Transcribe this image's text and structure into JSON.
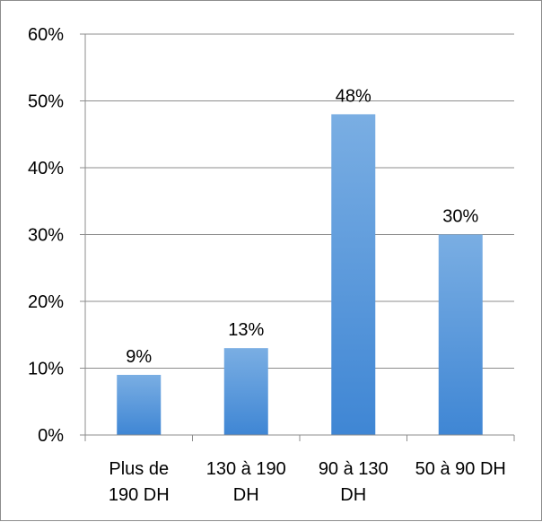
{
  "chart_data": {
    "type": "bar",
    "title": "",
    "xlabel": "",
    "ylabel": "",
    "categories": [
      [
        "Plus de",
        "190 DH"
      ],
      [
        "130 à 190",
        "DH"
      ],
      [
        "90 à 130",
        "DH"
      ],
      [
        "50 à 90 DH"
      ]
    ],
    "values": [
      9,
      13,
      48,
      30
    ],
    "data_labels": [
      "9%",
      "13%",
      "48%",
      "30%"
    ],
    "ylim": [
      0,
      60
    ],
    "yticks": [
      0,
      10,
      20,
      30,
      40,
      50,
      60
    ],
    "ytick_labels": [
      "0%",
      "10%",
      "20%",
      "30%",
      "40%",
      "50%",
      "60%"
    ],
    "grid": true,
    "legend": "none",
    "colors": {
      "bar_top": "#7aaee3",
      "bar_bottom": "#3f86d4",
      "grid": "#8c8c8c",
      "axis": "#8c8c8c"
    }
  }
}
